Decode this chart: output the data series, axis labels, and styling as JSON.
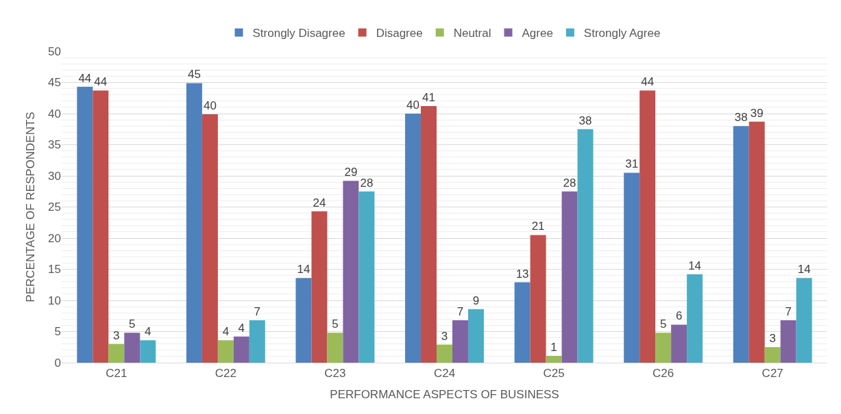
{
  "chart_data": {
    "type": "bar",
    "xlabel": "PERFORMANCE ASPECTS OF BUSINESS",
    "ylabel": "PERCENTAGE OF RESPONDENTS",
    "categories": [
      "C21",
      "C22",
      "C23",
      "C24",
      "C25",
      "C26",
      "C27"
    ],
    "series": [
      {
        "name": "Strongly Disagree",
        "color": "#4f81bd",
        "values": [
          44.3,
          44.9,
          13.6,
          40.0,
          12.9,
          30.5,
          38.0
        ],
        "value_labels": [
          "44",
          "45",
          "14",
          "40",
          "13",
          "31",
          "38"
        ]
      },
      {
        "name": "Disagree",
        "color": "#c0504d",
        "values": [
          43.7,
          39.9,
          24.3,
          41.2,
          20.5,
          43.7,
          38.7
        ],
        "value_labels": [
          "44",
          "40",
          "24",
          "41",
          "21",
          "44",
          "39"
        ]
      },
      {
        "name": "Neutral",
        "color": "#9bbb59",
        "values": [
          3.0,
          3.6,
          4.8,
          2.9,
          1.1,
          4.8,
          2.5
        ],
        "value_labels": [
          "3",
          "4",
          "5",
          "3",
          "1",
          "5",
          "3"
        ]
      },
      {
        "name": "Agree",
        "color": "#8064a2",
        "values": [
          4.8,
          4.2,
          29.2,
          6.8,
          27.5,
          6.1,
          6.8
        ],
        "value_labels": [
          "5",
          "4",
          "29",
          "7",
          "28",
          "6",
          "7"
        ]
      },
      {
        "name": "Strongly Agree",
        "color": "#4bacc6",
        "values": [
          3.6,
          6.8,
          27.5,
          8.6,
          37.5,
          14.2,
          13.6
        ],
        "value_labels": [
          "4",
          "7",
          "28",
          "9",
          "38",
          "14",
          "14"
        ]
      }
    ],
    "ylim": [
      0,
      50
    ],
    "yticks": [
      0,
      5,
      10,
      15,
      20,
      25,
      30,
      35,
      40,
      45,
      50
    ],
    "grid": "y",
    "legend": "top"
  }
}
